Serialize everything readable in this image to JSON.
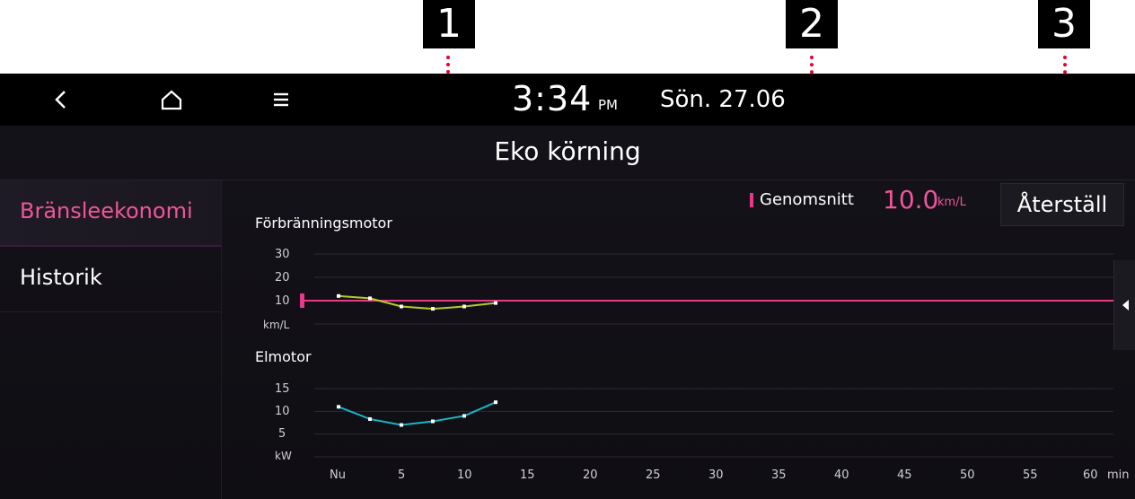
{
  "callouts": [
    "1",
    "2",
    "3"
  ],
  "status": {
    "time": "3:34",
    "ampm": "PM",
    "date": "Sön. 27.06"
  },
  "nav": {
    "back": "back-icon",
    "home": "home-icon",
    "menu": "menu-icon"
  },
  "page": {
    "title": "Eko körning"
  },
  "sidebar": {
    "items": [
      {
        "label": "Bränsleekonomi",
        "active": true
      },
      {
        "label": "Historik",
        "active": false
      }
    ]
  },
  "average": {
    "label": "Genomsnitt",
    "value": "10.0",
    "unit": "km/L"
  },
  "reset": {
    "label": "Återställ"
  },
  "colors": {
    "accent": "#f0559a",
    "avg_line": "#e6398a",
    "combustion": "#b8c92a",
    "electric": "#18b5c4"
  },
  "chart_data": [
    {
      "type": "line",
      "title": "Förbränningsmotor",
      "ylabel": "km/L",
      "ylim": [
        0,
        30
      ],
      "yticks": [
        "30",
        "20",
        "10"
      ],
      "x": [
        0,
        2.5,
        5,
        7.5,
        10,
        12.5
      ],
      "series": [
        {
          "values": [
            12,
            11,
            7.5,
            6.5,
            7.5,
            9
          ]
        }
      ],
      "average": 10,
      "grid": true
    },
    {
      "type": "line",
      "title": "Elmotor",
      "ylabel": "kW",
      "ylim": [
        0,
        15
      ],
      "yticks": [
        "15",
        "10",
        "5"
      ],
      "x": [
        0,
        2.5,
        5,
        7.5,
        10,
        12.5
      ],
      "series": [
        {
          "values": [
            11,
            8.3,
            7,
            7.8,
            9,
            12
          ]
        }
      ],
      "grid": true
    }
  ],
  "xaxis": {
    "ticks": [
      "Nu",
      "5",
      "10",
      "15",
      "20",
      "25",
      "30",
      "35",
      "40",
      "45",
      "50",
      "55",
      "60"
    ],
    "unit": "min"
  }
}
